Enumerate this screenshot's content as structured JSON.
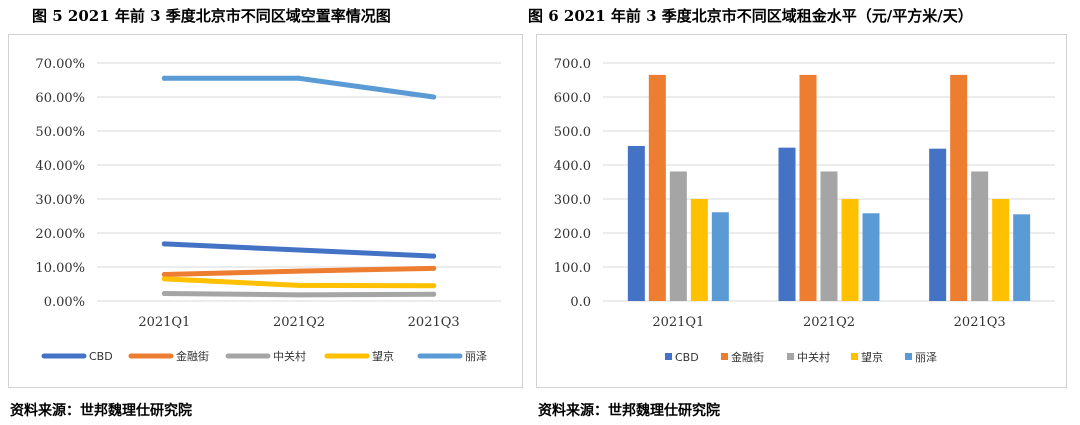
{
  "figures": [
    {
      "title": "图 5   2021 年前 3 季度北京市不同区域空置率情况图",
      "source": "资料来源：世邦魏理仕研究院"
    },
    {
      "title": "图 6   2021 年前 3 季度北京市不同区域租金水平（元/平方米/天）",
      "source": "资料来源：世邦魏理仕研究院"
    }
  ],
  "chart_data": [
    {
      "type": "line",
      "title": "图 5   2021 年前 3 季度北京市不同区域空置率情况图",
      "categories": [
        "2021Q1",
        "2021Q2",
        "2021Q3"
      ],
      "series": [
        {
          "name": "CBD",
          "values": [
            0.168,
            0.15,
            0.132
          ],
          "color": "#4472c4"
        },
        {
          "name": "金融街",
          "values": [
            0.078,
            0.088,
            0.096
          ],
          "color": "#ed7d31"
        },
        {
          "name": "中关村",
          "values": [
            0.022,
            0.018,
            0.02
          ],
          "color": "#a5a5a5"
        },
        {
          "name": "望京",
          "values": [
            0.065,
            0.046,
            0.045
          ],
          "color": "#ffc000"
        },
        {
          "name": "丽泽",
          "values": [
            0.655,
            0.655,
            0.6
          ],
          "color": "#5b9bd5"
        }
      ],
      "ylim": [
        0,
        0.7
      ],
      "yticks": [
        "0.00%",
        "10.00%",
        "20.00%",
        "30.00%",
        "40.00%",
        "50.00%",
        "60.00%",
        "70.00%"
      ],
      "grid": true,
      "legend": "bottom"
    },
    {
      "type": "bar",
      "title": "图 6   2021 年前 3 季度北京市不同区域租金水平（元/平方米/天）",
      "categories": [
        "2021Q1",
        "2021Q2",
        "2021Q3"
      ],
      "series": [
        {
          "name": "CBD",
          "values": [
            456,
            451,
            448
          ],
          "color": "#4472c4"
        },
        {
          "name": "金融街",
          "values": [
            665,
            665,
            665
          ],
          "color": "#ed7d31"
        },
        {
          "name": "中关村",
          "values": [
            381,
            381,
            381
          ],
          "color": "#a5a5a5"
        },
        {
          "name": "望京",
          "values": [
            300,
            300,
            300
          ],
          "color": "#ffc000"
        },
        {
          "name": "丽泽",
          "values": [
            261,
            258,
            255
          ],
          "color": "#5b9bd5"
        }
      ],
      "ylim": [
        0,
        700
      ],
      "yticks": [
        "0.0",
        "100.0",
        "200.0",
        "300.0",
        "400.0",
        "500.0",
        "600.0",
        "700.0"
      ],
      "grid": true,
      "legend": "bottom"
    }
  ]
}
